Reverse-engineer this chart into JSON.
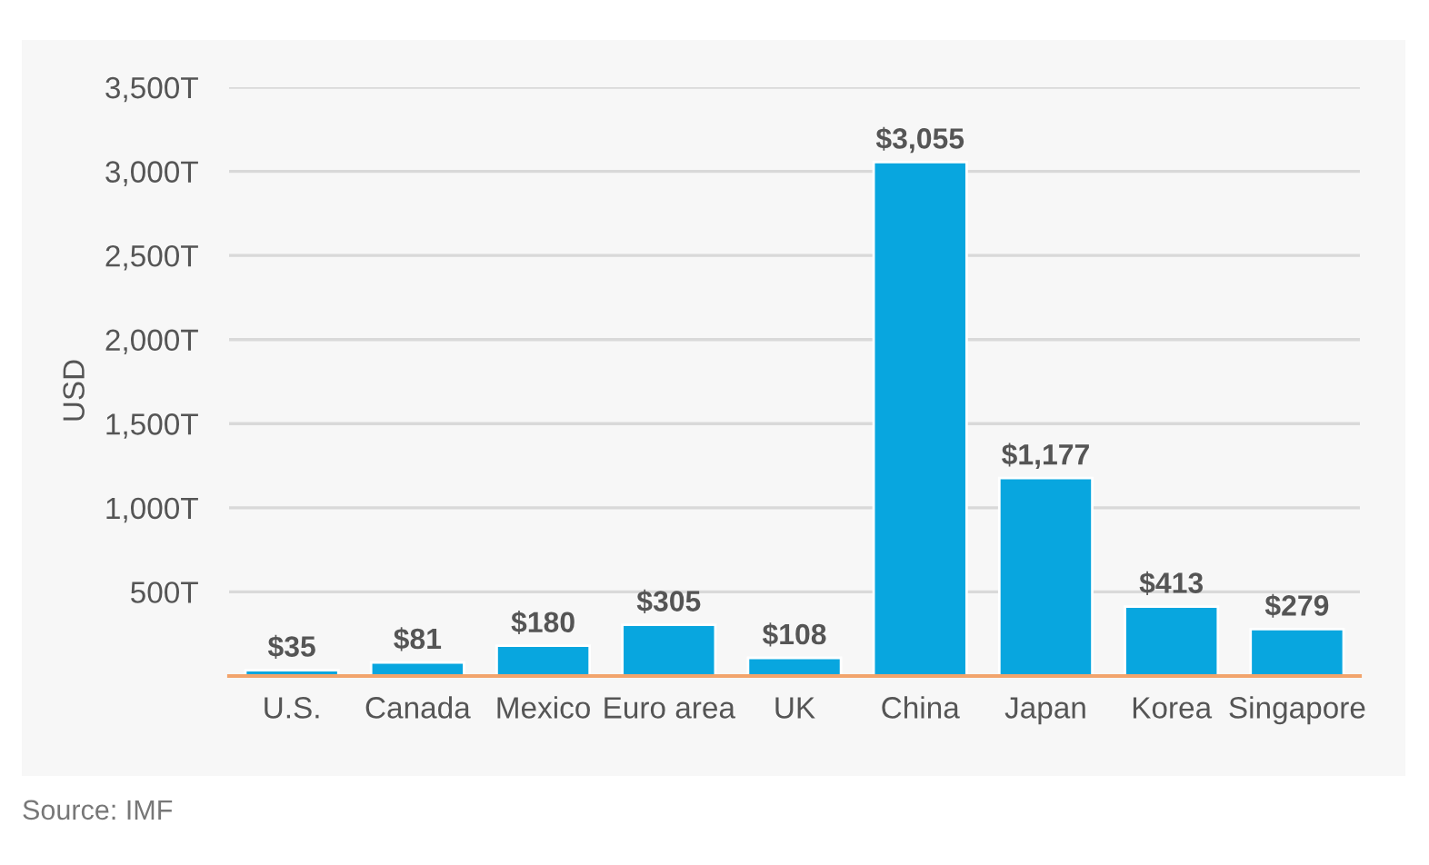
{
  "chart_data": {
    "type": "bar",
    "ylabel": "USD",
    "categories": [
      "U.S.",
      "Canada",
      "Mexico",
      "Euro area",
      "UK",
      "China",
      "Japan",
      "Korea",
      "Singapore"
    ],
    "values": [
      35,
      81,
      180,
      305,
      108,
      3055,
      1177,
      413,
      279
    ],
    "value_labels": [
      "$35",
      "$81",
      "$180",
      "$305",
      "$108",
      "$3,055",
      "$1,177",
      "$413",
      "$279"
    ],
    "color": "#08a6df",
    "ylim": [
      0,
      3500
    ],
    "yticks": [
      {
        "value": 500,
        "label": "500T"
      },
      {
        "value": 1000,
        "label": "1,000T"
      },
      {
        "value": 1500,
        "label": "1,500T"
      },
      {
        "value": 2000,
        "label": "2,000T"
      },
      {
        "value": 2500,
        "label": "2,500T"
      },
      {
        "value": 3000,
        "label": "3,000T"
      },
      {
        "value": 3500,
        "label": "3,500T"
      }
    ],
    "grid": "y",
    "annotations": [
      "Source: IMF"
    ]
  }
}
